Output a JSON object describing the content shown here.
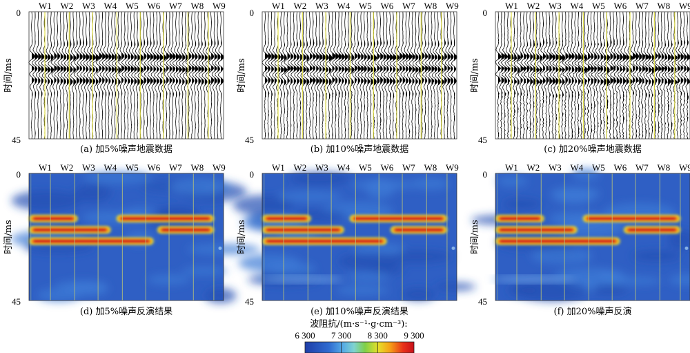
{
  "chart_data": {
    "type": "heatmap",
    "wells": [
      "W1",
      "W2",
      "W3",
      "W4",
      "W5",
      "W6",
      "W7",
      "W8",
      "W9"
    ],
    "time_axis": {
      "label": "时间/ms",
      "ticks": [
        "0",
        "45"
      ],
      "range_ms": [
        0,
        45
      ]
    },
    "panels": [
      {
        "id": "a",
        "kind": "seismic",
        "caption": "(a) 加5%噪声地震数据",
        "noise_pct": 5
      },
      {
        "id": "b",
        "kind": "seismic",
        "caption": "(b) 加10%噪声地震数据",
        "noise_pct": 10
      },
      {
        "id": "c",
        "kind": "seismic",
        "caption": "(c) 加20%噪声地震数据",
        "noise_pct": 20
      },
      {
        "id": "d",
        "kind": "impedance",
        "caption": "(d) 加5%噪声反演结果",
        "noise_pct": 5
      },
      {
        "id": "e",
        "kind": "impedance",
        "caption": "(e) 加10%噪声反演结果",
        "noise_pct": 10
      },
      {
        "id": "f",
        "kind": "impedance",
        "caption": "(f) 加20%噪声反演",
        "noise_pct": 20
      }
    ],
    "layers_ms": [
      {
        "t": 16,
        "x_start": 0.0,
        "x_end": 0.25,
        "value": 9300
      },
      {
        "t": 16,
        "x_start": 0.45,
        "x_end": 0.95,
        "value": 9300
      },
      {
        "t": 20,
        "x_start": 0.0,
        "x_end": 0.42,
        "value": 9300
      },
      {
        "t": 20,
        "x_start": 0.66,
        "x_end": 0.95,
        "value": 9300
      },
      {
        "t": 24,
        "x_start": 0.0,
        "x_end": 0.64,
        "value": 9300
      }
    ],
    "colorbar": {
      "title": "波阻抗/(m·s⁻¹·g·cm⁻³):",
      "ticks": [
        "6 300",
        "7 300",
        "8 300",
        "9 300"
      ],
      "range": [
        6300,
        9300
      ],
      "colors": [
        "#1f3ea8",
        "#2f6bd0",
        "#52a7e6",
        "#7fd3d0",
        "#7ecf4a",
        "#e6e02a",
        "#f5a017",
        "#e8321a",
        "#c8101a"
      ]
    }
  }
}
